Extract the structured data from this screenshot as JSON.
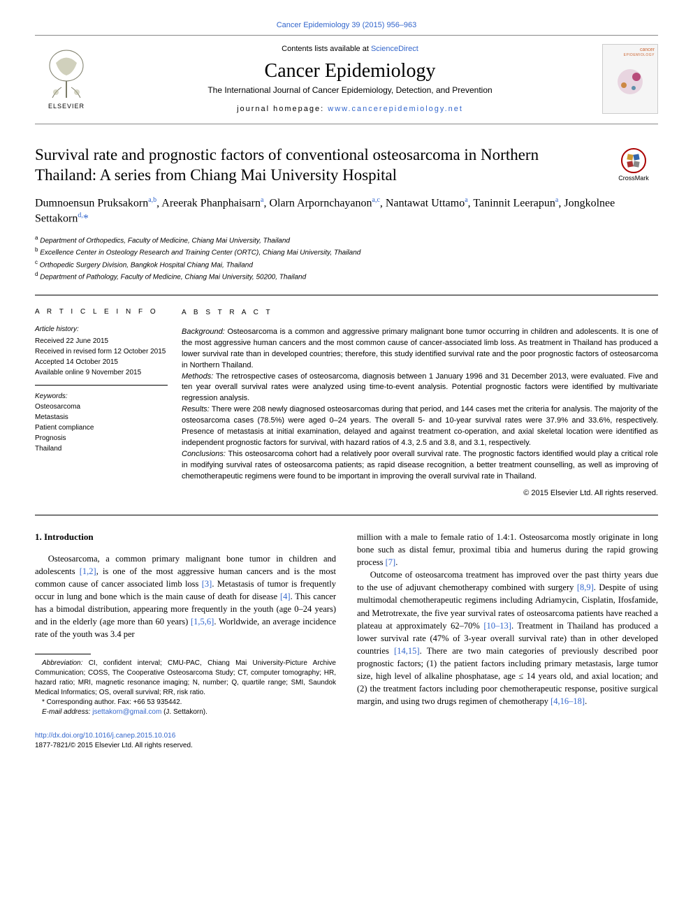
{
  "colors": {
    "link": "#3366cc",
    "text": "#000000",
    "cover_brand": "#cc6633",
    "crossmark_ring": "#a00000"
  },
  "top_citation": "Cancer Epidemiology 39 (2015) 956–963",
  "header": {
    "publisher_name": "ELSEVIER",
    "contents_available": "Contents lists available at ",
    "sciencedirect": "ScienceDirect",
    "journal_name": "Cancer Epidemiology",
    "journal_subtitle": "The International Journal of Cancer Epidemiology, Detection, and Prevention",
    "homepage_label": "journal homepage: ",
    "homepage_url": "www.cancerepidemiology.net",
    "cover_brand_line1": "cancer",
    "cover_brand_line2": "EPIDEMIOLOGY"
  },
  "crossmark_label": "CrossMark",
  "article": {
    "title": "Survival rate and prognostic factors of conventional osteosarcoma in Northern Thailand: A series from Chiang Mai University Hospital",
    "authors_html": "Dumnoensun Pruksakorn<sup>a,b</sup>, Areerak Phanphaisarn<sup>a</sup>, Olarn Arpornchayanon<sup>a,c</sup>, Nantawat Uttamo<sup>a</sup>, Taninnit Leerapun<sup>a</sup>, Jongkolnee Settakorn<sup>d,</sup><span class=\"star\">*</span>"
  },
  "affiliations": [
    {
      "sup": "a",
      "text": "Department of Orthopedics, Faculty of Medicine, Chiang Mai University, Thailand"
    },
    {
      "sup": "b",
      "text": "Excellence Center in Osteology Research and Training Center (ORTC), Chiang Mai University, Thailand"
    },
    {
      "sup": "c",
      "text": "Orthopedic Surgery Division, Bangkok Hospital Chiang Mai, Thailand"
    },
    {
      "sup": "d",
      "text": "Department of Pathology, Faculty of Medicine, Chiang Mai University, 50200, Thailand"
    }
  ],
  "info": {
    "heading": "A R T I C L E   I N F O",
    "history_label": "Article history:",
    "history": [
      "Received 22 June 2015",
      "Received in revised form 12 October 2015",
      "Accepted 14 October 2015",
      "Available online 9 November 2015"
    ],
    "keywords_label": "Keywords:",
    "keywords": [
      "Osteosarcoma",
      "Metastasis",
      "Patient compliance",
      "Prognosis",
      "Thailand"
    ]
  },
  "abstract": {
    "heading": "A B S T R A C T",
    "background_label": "Background: ",
    "background": "Osteosarcoma is a common and aggressive primary malignant bone tumor occurring in children and adolescents. It is one of the most aggressive human cancers and the most common cause of cancer-associated limb loss. As treatment in Thailand has produced a lower survival rate than in developed countries; therefore, this study identified survival rate and the poor prognostic factors of osteosarcoma in Northern Thailand.",
    "methods_label": "Methods: ",
    "methods": "The retrospective cases of osteosarcoma, diagnosis between 1 January 1996 and 31 December 2013, were evaluated. Five and ten year overall survival rates were analyzed using time-to-event analysis. Potential prognostic factors were identified by multivariate regression analysis.",
    "results_label": "Results: ",
    "results": "There were 208 newly diagnosed osteosarcomas during that period, and 144 cases met the criteria for analysis. The majority of the osteosarcoma cases (78.5%) were aged 0–24 years. The overall 5- and 10-year survival rates were 37.9% and 33.6%, respectively. Presence of metastasis at initial examination, delayed and against treatment co-operation, and axial skeletal location were identified as independent prognostic factors for survival, with hazard ratios of 4.3, 2.5 and 3.8, and 3.1, respectively.",
    "conclusions_label": "Conclusions: ",
    "conclusions": "This osteosarcoma cohort had a relatively poor overall survival rate. The prognostic factors identified would play a critical role in modifying survival rates of osteosarcoma patients; as rapid disease recognition, a better treatment counselling, as well as improving of chemotherapeutic regimens were found to be important in improving the overall survival rate in Thailand.",
    "copyright": "© 2015 Elsevier Ltd. All rights reserved."
  },
  "intro": {
    "heading": "1. Introduction",
    "p1_pre": "Osteosarcoma, a common primary malignant bone tumor in children and adolescents ",
    "r12": "[1,2]",
    "p1_a": ", is one of the most aggressive human cancers and is the most common cause of cancer associated limb loss ",
    "r3": "[3]",
    "p1_b": ". Metastasis of tumor is frequently occur in lung and bone which is the main cause of death for disease ",
    "r4": "[4]",
    "p1_c": ". This cancer has a bimodal distribution, appearing more frequently in the youth (age 0–24 years) and in the elderly (age more than 60 years) ",
    "r156": "[1,5,6]",
    "p1_d": ". Worldwide, an average incidence rate of the youth was 3.4 per",
    "p2_a": "million with a male to female ratio of 1.4:1. Osteosarcoma mostly originate in long bone such as distal femur, proximal tibia and humerus during the rapid growing process ",
    "r7": "[7]",
    "p2_b": ".",
    "p3_a": "Outcome of osteosarcoma treatment has improved over the past thirty years due to the use of adjuvant chemotherapy combined with surgery ",
    "r89": "[8,9]",
    "p3_b": ". Despite of using multimodal chemotherapeutic regimens including Adriamycin, Cisplatin, Ifosfamide, and Metrotrexate, the five year survival rates of osteosarcoma patients have reached a plateau at approximately 62–70% ",
    "r1013": "[10–13]",
    "p3_c": ". Treatment in Thailand has produced a lower survival rate (47% of 3-year overall survival rate) than in other developed countries ",
    "r1415": "[14,15]",
    "p3_d": ". There are two main categories of previously described poor prognostic factors; (1) the patient factors including primary metastasis, large tumor size, high level of alkaline phosphatase, age ≤ 14 years old, and axial location; and (2) the treatment factors including poor chemotherapeutic response, positive surgical margin, and using two drugs regimen of chemotherapy ",
    "r41618": "[4,16–18]",
    "p3_e": "."
  },
  "footnotes": {
    "abbrev_label": "Abbreviation: ",
    "abbrev_text": "CI, confident interval; CMU-PAC, Chiang Mai University-Picture Archive Communication; COSS, The Cooperative Osteosarcoma Study; CT, computer tomography; HR, hazard ratio; MRI, magnetic resonance imaging; N, number; Q, quartile range; SMI, Saundok Medical Informatics; OS, overall survival; RR, risk ratio.",
    "corr_label": "* Corresponding author. Fax: +66 53 935442.",
    "email_label": "E-mail address: ",
    "email": "jsettakorn@gmail.com",
    "email_suffix": " (J. Settakorn)."
  },
  "bottom": {
    "doi": "http://dx.doi.org/10.1016/j.canep.2015.10.016",
    "issn_line": "1877-7821/© 2015 Elsevier Ltd. All rights reserved."
  }
}
